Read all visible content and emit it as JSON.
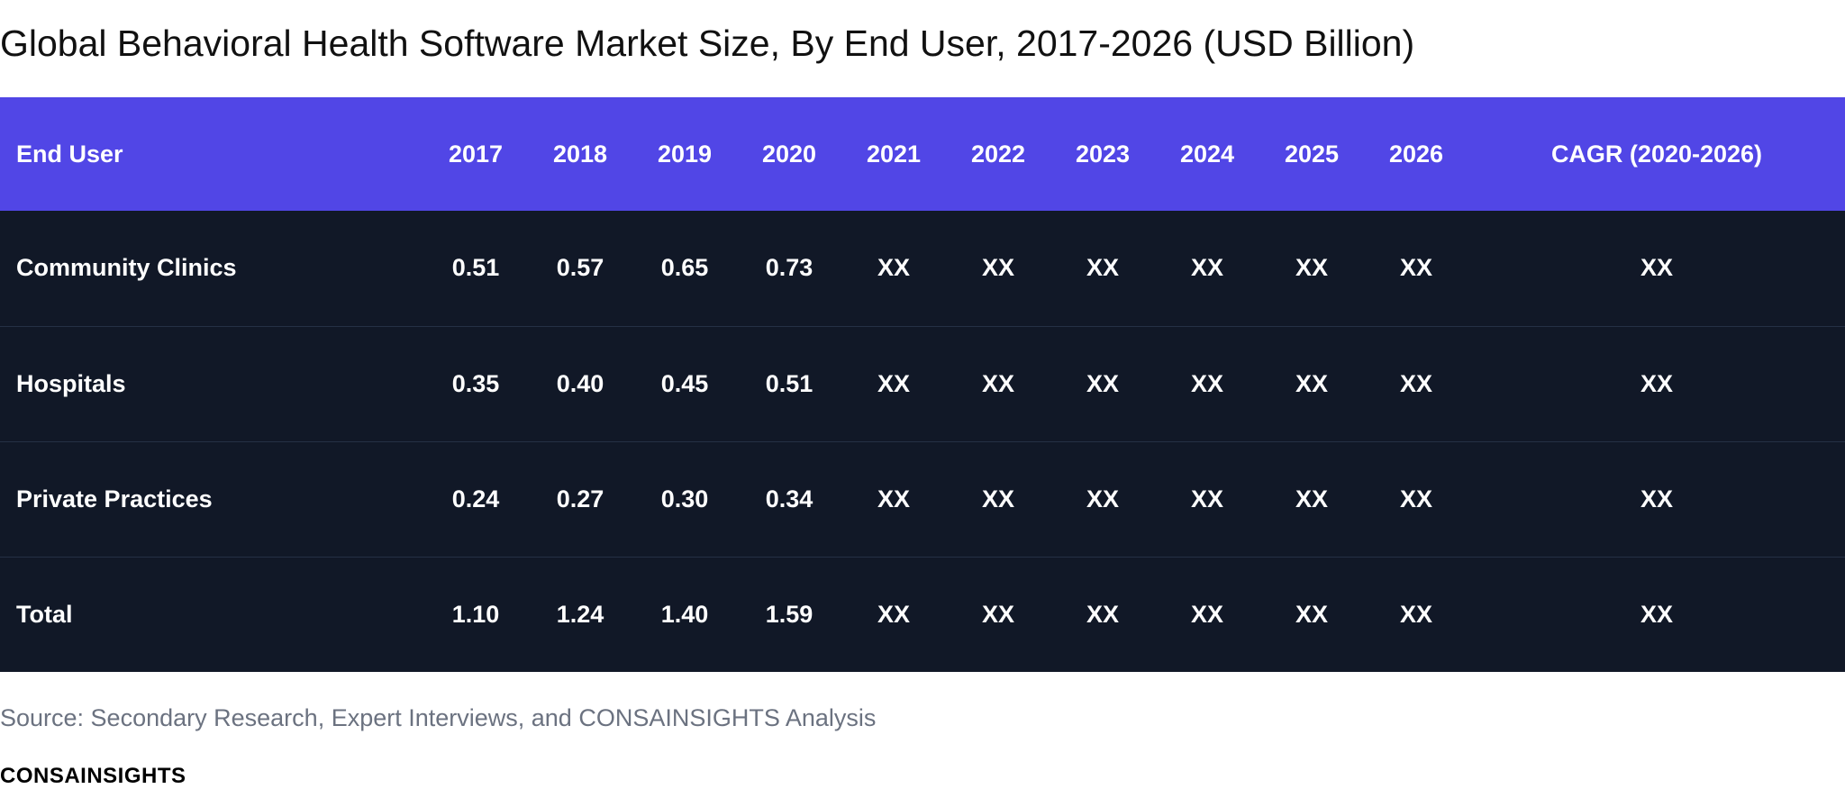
{
  "chart_data": {
    "type": "table",
    "title": "Global Behavioral Health Software Market Size, By End User, 2017-2026 (USD Billion)",
    "columns": [
      "End User",
      "2017",
      "2018",
      "2019",
      "2020",
      "2021",
      "2022",
      "2023",
      "2024",
      "2025",
      "2026",
      "CAGR (2020-2026)"
    ],
    "rows": [
      {
        "label": "Community Clinics",
        "values": [
          "0.51",
          "0.57",
          "0.65",
          "0.73",
          "XX",
          "XX",
          "XX",
          "XX",
          "XX",
          "XX",
          "XX"
        ]
      },
      {
        "label": "Hospitals",
        "values": [
          "0.35",
          "0.40",
          "0.45",
          "0.51",
          "XX",
          "XX",
          "XX",
          "XX",
          "XX",
          "XX",
          "XX"
        ]
      },
      {
        "label": "Private Practices",
        "values": [
          "0.24",
          "0.27",
          "0.30",
          "0.34",
          "XX",
          "XX",
          "XX",
          "XX",
          "XX",
          "XX",
          "XX"
        ]
      },
      {
        "label": "Total",
        "values": [
          "1.10",
          "1.24",
          "1.40",
          "1.59",
          "XX",
          "XX",
          "XX",
          "XX",
          "XX",
          "XX",
          "XX"
        ]
      }
    ]
  },
  "source": "Source: Secondary Research, Expert Interviews, and CONSAINSIGHTS Analysis",
  "brand": "CONSAINSIGHTS",
  "colors": {
    "header_bg": "#5146e6",
    "row_bg": "#111827",
    "text": "#ffffff",
    "source_text": "#6b7280"
  }
}
